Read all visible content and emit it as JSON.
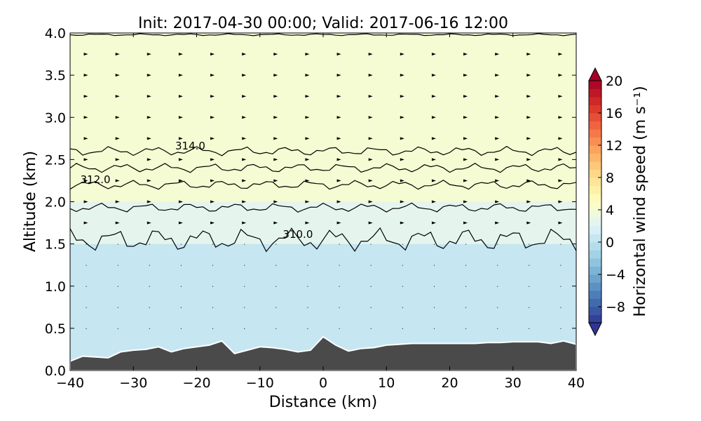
{
  "chart_data": {
    "type": "heatmap",
    "title": "Init: 2017-04-30 00:00; Valid: 2017-06-16 12:00",
    "xlabel": "Distance (km)",
    "ylabel": "Altitude (km)",
    "xlim": [
      -40,
      40
    ],
    "ylim": [
      0.0,
      4.0
    ],
    "x_ticks": [
      -40,
      -30,
      -20,
      -10,
      0,
      10,
      20,
      30,
      40
    ],
    "x_tick_labels": [
      "−40",
      "−30",
      "−20",
      "−10",
      "0",
      "10",
      "20",
      "30",
      "40"
    ],
    "y_ticks": [
      0.0,
      0.5,
      1.0,
      1.5,
      2.0,
      2.5,
      3.0,
      3.5,
      4.0
    ],
    "y_tick_labels": [
      "0.0",
      "0.5",
      "1.0",
      "1.5",
      "2.0",
      "2.5",
      "3.0",
      "3.5",
      "4.0"
    ],
    "grid": false,
    "colorbar": {
      "label": "Horizontal wind speed (m s⁻¹)",
      "vmin": -10,
      "vmax": 20,
      "step": 1,
      "extend": "both",
      "ticks": [
        -8,
        -4,
        0,
        4,
        8,
        12,
        16,
        20
      ],
      "tick_labels": [
        "−8",
        "−4",
        "0",
        "4",
        "8",
        "12",
        "16",
        "20"
      ],
      "colormap": [
        "#313695",
        "#4575b4",
        "#74add1",
        "#abd9e9",
        "#e0f3f8",
        "#ffffbf",
        "#fee090",
        "#fdae61",
        "#f46d43",
        "#d73027",
        "#a50026"
      ]
    },
    "wind_speed_layers": [
      {
        "altitude_range": [
          0.0,
          1.5
        ],
        "speed": 0.5
      },
      {
        "altitude_range": [
          1.5,
          2.0
        ],
        "speed": 2.5
      },
      {
        "altitude_range": [
          2.0,
          4.0
        ],
        "speed": 4.0
      }
    ],
    "theta_contours": [
      {
        "value": 310.0,
        "label": "310.0",
        "mean_altitude": 1.55
      },
      {
        "value": 311.0,
        "label": "",
        "mean_altitude": 1.93
      },
      {
        "value": 312.0,
        "label": "312.0",
        "mean_altitude": 2.2
      },
      {
        "value": 313.0,
        "label": "",
        "mean_altitude": 2.4
      },
      {
        "value": 314.0,
        "label": "314.0",
        "mean_altitude": 2.6
      },
      {
        "value": 316.0,
        "label": "",
        "mean_altitude": 3.98
      }
    ],
    "terrain": {
      "x": [
        -40,
        -38,
        -36,
        -34,
        -32,
        -30,
        -28,
        -26,
        -24,
        -22,
        -20,
        -18,
        -16,
        -14,
        -12,
        -10,
        -8,
        -6,
        -4,
        -2,
        0,
        2,
        4,
        6,
        8,
        10,
        12,
        14,
        16,
        18,
        20,
        22,
        24,
        26,
        28,
        30,
        32,
        34,
        36,
        38,
        40
      ],
      "altitude": [
        0.11,
        0.17,
        0.16,
        0.15,
        0.22,
        0.24,
        0.25,
        0.28,
        0.22,
        0.26,
        0.28,
        0.3,
        0.35,
        0.2,
        0.24,
        0.28,
        0.27,
        0.25,
        0.22,
        0.24,
        0.4,
        0.3,
        0.23,
        0.26,
        0.27,
        0.3,
        0.31,
        0.32,
        0.32,
        0.32,
        0.32,
        0.32,
        0.32,
        0.33,
        0.33,
        0.34,
        0.34,
        0.34,
        0.32,
        0.35,
        0.31
      ]
    },
    "wind_barbs": {
      "spacing_x_km": 5,
      "spacing_y_km": 0.25,
      "direction": "east"
    }
  }
}
